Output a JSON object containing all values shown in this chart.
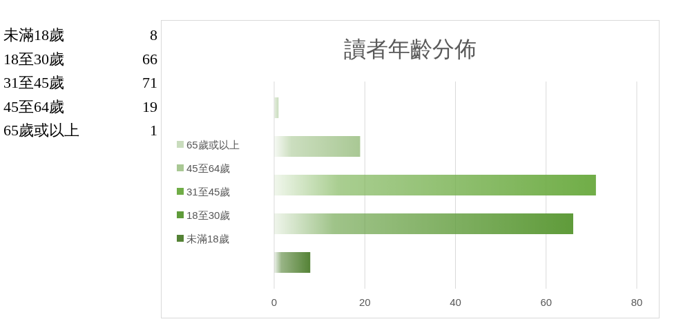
{
  "chart_data": [
    {
      "type": "other",
      "categories": [
        "未滿18歲",
        "18至30歲",
        "31至45歲",
        "45至64歲",
        "65歲或以上"
      ],
      "values": [
        8,
        66,
        71,
        19,
        1
      ],
      "data_labels": true
    },
    {
      "type": "bar",
      "orientation": "horizontal",
      "title": "讀者年齡分佈",
      "categories": [
        null,
        null,
        null,
        null,
        null
      ],
      "series": [
        {
          "name": "65歲或以上",
          "color": "#c9dcbd",
          "values": [
            1,
            null,
            null,
            null,
            null
          ]
        },
        {
          "name": "45至64歲",
          "color": "#a9c894",
          "values": [
            null,
            19,
            null,
            null,
            null
          ]
        },
        {
          "name": "31至45歲",
          "color": "#70ad47",
          "values": [
            null,
            null,
            71,
            null,
            null
          ]
        },
        {
          "name": "18至30歲",
          "color": "#5f9b3a",
          "values": [
            null,
            null,
            null,
            66,
            null
          ]
        },
        {
          "name": "未滿18歲",
          "color": "#548235",
          "values": [
            null,
            null,
            null,
            null,
            8
          ]
        }
      ],
      "xlim": [
        0,
        80
      ],
      "xticks": [
        0,
        20,
        40,
        60,
        80
      ],
      "grid": "x",
      "legend": "left"
    }
  ]
}
